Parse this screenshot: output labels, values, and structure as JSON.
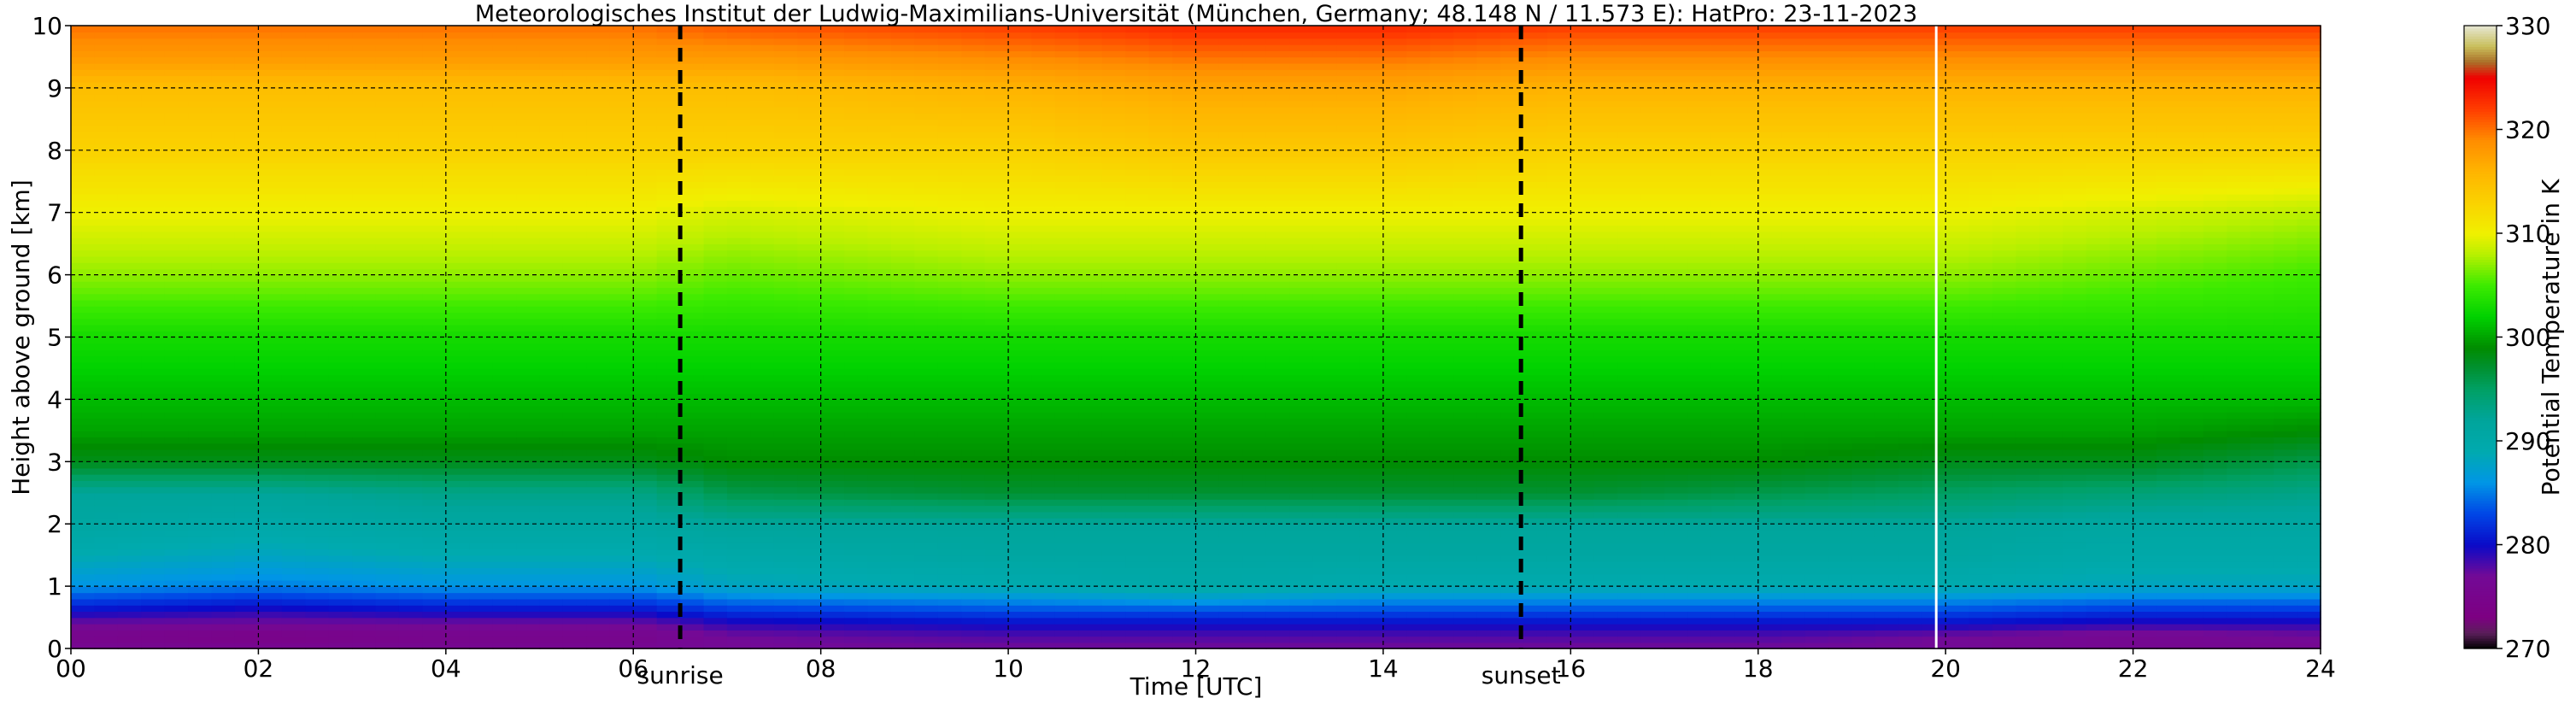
{
  "chart_data": {
    "type": "heatmap",
    "title": "Meteorologisches Institut der Ludwig-Maximilians-Universität (München, Germany; 48.148 N / 11.573 E):    HatPro: 23-11-2023",
    "xlabel": "Time [UTC]",
    "ylabel": "Height above ground [km]",
    "xlim": [
      0,
      24
    ],
    "ylim": [
      0,
      10
    ],
    "x_ticks": [
      "00",
      "02",
      "04",
      "06",
      "08",
      "10",
      "12",
      "14",
      "16",
      "18",
      "20",
      "22",
      "24"
    ],
    "y_ticks": [
      "0",
      "1",
      "2",
      "3",
      "4",
      "5",
      "6",
      "7",
      "8",
      "9",
      "10"
    ],
    "grid": true,
    "colorbar": {
      "label": "Potential Temperature in K",
      "range": [
        270,
        330
      ],
      "ticks": [
        "270",
        "280",
        "290",
        "300",
        "310",
        "320",
        "330"
      ]
    },
    "markers": [
      {
        "label": "sunrise",
        "x": 6.5
      },
      {
        "label": "sunset",
        "x": 15.47
      }
    ],
    "data_end_time": 19.9,
    "heights_km": [
      0,
      0.2,
      0.4,
      0.6,
      0.8,
      1.0,
      1.5,
      2.0,
      2.5,
      3.0,
      3.5,
      4.0,
      5.0,
      6.0,
      7.0,
      8.0,
      9.0,
      9.5,
      10.0
    ],
    "profiles": [
      {
        "time": 0,
        "theta_K": [
          276,
          275,
          277,
          280,
          283,
          286,
          289,
          291,
          292,
          298,
          300,
          301,
          303,
          307,
          310,
          313,
          315,
          318,
          320
        ]
      },
      {
        "time": 2,
        "theta_K": [
          276,
          274,
          277,
          279,
          282,
          285,
          288,
          290,
          292,
          298,
          300,
          301,
          303,
          307,
          310,
          313,
          315,
          318,
          320
        ]
      },
      {
        "time": 4,
        "theta_K": [
          276,
          275,
          277,
          280,
          283,
          286,
          289,
          291,
          293,
          298,
          300,
          301,
          303,
          307,
          310,
          313,
          315,
          318,
          320
        ]
      },
      {
        "time": 6,
        "theta_K": [
          276,
          275,
          277,
          280,
          283,
          286,
          289,
          291,
          293,
          298,
          300,
          301,
          303,
          307,
          310,
          313,
          315,
          318,
          320
        ]
      },
      {
        "time": 7,
        "theta_K": [
          277,
          277,
          279,
          282,
          285,
          288,
          290,
          292,
          296,
          299,
          300,
          301,
          303,
          306,
          309,
          313,
          315,
          318,
          321
        ]
      },
      {
        "time": 10,
        "theta_K": [
          277,
          278,
          280,
          283,
          286,
          289,
          291,
          292,
          297,
          299,
          300,
          301,
          303,
          307,
          310,
          313,
          316,
          319,
          322
        ]
      },
      {
        "time": 12,
        "theta_K": [
          277,
          278,
          280,
          283,
          287,
          290,
          291,
          292,
          297,
          299,
          300,
          301,
          303,
          307,
          310,
          314,
          317,
          320,
          323
        ]
      },
      {
        "time": 14,
        "theta_K": [
          277,
          278,
          280,
          283,
          286,
          289,
          291,
          292,
          297,
          299,
          300,
          301,
          303,
          307,
          310,
          314,
          317,
          320,
          323
        ]
      },
      {
        "time": 16,
        "theta_K": [
          277,
          278,
          280,
          283,
          286,
          289,
          291,
          292,
          297,
          299,
          300,
          301,
          303,
          307,
          310,
          313,
          316,
          319,
          322
        ]
      },
      {
        "time": 18,
        "theta_K": [
          277,
          278,
          280,
          283,
          286,
          289,
          291,
          292,
          296,
          299,
          300,
          301,
          303,
          307,
          310,
          313,
          316,
          319,
          322
        ]
      },
      {
        "time": 20,
        "theta_K": [
          277,
          277,
          280,
          283,
          286,
          289,
          291,
          292,
          295,
          298,
          300,
          301,
          303,
          307,
          310,
          313,
          316,
          319,
          322
        ]
      },
      {
        "time": 22,
        "theta_K": [
          276,
          276,
          279,
          282,
          285,
          288,
          290,
          291,
          294,
          298,
          300,
          301,
          303,
          306,
          309,
          313,
          316,
          319,
          322
        ]
      },
      {
        "time": 24,
        "theta_K": [
          276,
          277,
          279,
          282,
          285,
          288,
          290,
          291,
          293,
          296,
          299,
          301,
          303,
          305,
          308,
          313,
          316,
          319,
          322
        ]
      }
    ]
  }
}
